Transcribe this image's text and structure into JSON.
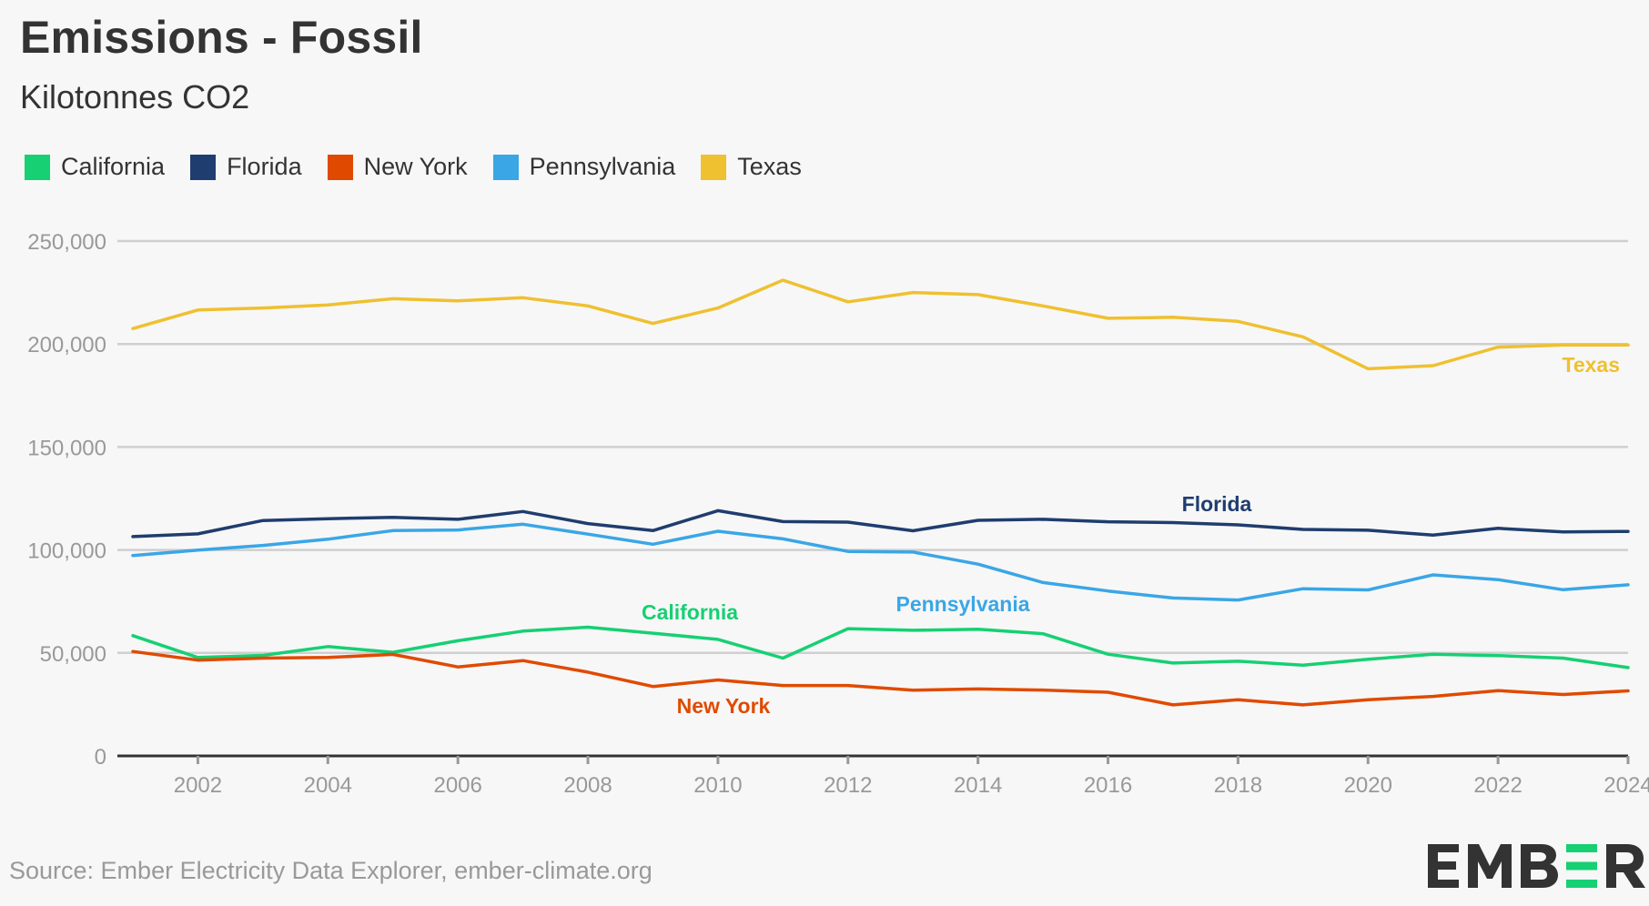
{
  "header": {
    "title": "Emissions - Fossil",
    "subtitle": "Kilotonnes CO2"
  },
  "legend": [
    {
      "label": "California",
      "color": "#16d073"
    },
    {
      "label": "Florida",
      "color": "#1f3d6e"
    },
    {
      "label": "New York",
      "color": "#e04a00"
    },
    {
      "label": "Pennsylvania",
      "color": "#3aa6e6"
    },
    {
      "label": "Texas",
      "color": "#efc030"
    }
  ],
  "footer": {
    "source": "Source: Ember Electricity Data Explorer, ember-climate.org",
    "logo_text": "EMBER",
    "logo_accent_color": "#16d073"
  },
  "chart_data": {
    "type": "line",
    "title": "Emissions - Fossil",
    "subtitle": "Kilotonnes CO2",
    "xlabel": "",
    "ylabel": "Kilotonnes CO2",
    "x": [
      2001,
      2002,
      2003,
      2004,
      2005,
      2006,
      2007,
      2008,
      2009,
      2010,
      2011,
      2012,
      2013,
      2014,
      2015,
      2016,
      2017,
      2018,
      2019,
      2020,
      2021,
      2022,
      2023,
      2024
    ],
    "xlim": [
      2001,
      2024
    ],
    "ylim": [
      0,
      250000
    ],
    "x_ticks": [
      "2002",
      "2004",
      "2006",
      "2008",
      "2010",
      "2012",
      "2014",
      "2016",
      "2018",
      "2020",
      "2022",
      "2024"
    ],
    "y_ticks": [
      "0",
      "50,000",
      "100,000",
      "150,000",
      "200,000",
      "250,000"
    ],
    "grid": true,
    "legend_position": "top-left",
    "series": [
      {
        "name": "California",
        "color": "#16d073",
        "label_text": "California",
        "values": [
          58400,
          47800,
          48800,
          53100,
          50300,
          55900,
          60600,
          62500,
          59600,
          56600,
          47500,
          61800,
          61000,
          61500,
          59300,
          49400,
          45100,
          46000,
          44100,
          46900,
          49400,
          48700,
          47500,
          42900
        ]
      },
      {
        "name": "Florida",
        "color": "#1f3d6e",
        "label_text": "Florida",
        "values": [
          106500,
          107800,
          114300,
          115200,
          115800,
          114900,
          118700,
          112800,
          109400,
          119100,
          113800,
          113500,
          109300,
          114400,
          114900,
          113700,
          113300,
          112200,
          110000,
          109600,
          107200,
          110500,
          108800,
          109000
        ]
      },
      {
        "name": "New York",
        "color": "#e04a00",
        "label_text": "New York",
        "values": [
          50700,
          46500,
          47500,
          47800,
          49300,
          43200,
          46300,
          40700,
          33700,
          36900,
          34200,
          34200,
          31900,
          32500,
          32000,
          30900,
          24800,
          27300,
          24800,
          27300,
          28900,
          31700,
          29800,
          31600
        ]
      },
      {
        "name": "Pennsylvania",
        "color": "#3aa6e6",
        "label_text": "Pennsylvania",
        "values": [
          97300,
          99900,
          102200,
          105200,
          109400,
          109700,
          112500,
          107700,
          102800,
          109100,
          105400,
          99300,
          99000,
          93100,
          84200,
          80100,
          76700,
          75700,
          81200,
          80600,
          87900,
          85600,
          80700,
          83100
        ]
      },
      {
        "name": "Texas",
        "color": "#efc030",
        "label_text": "Texas",
        "values": [
          207500,
          216500,
          217500,
          219000,
          222000,
          221000,
          222500,
          218500,
          210000,
          217500,
          231000,
          220500,
          225000,
          224000,
          218500,
          212500,
          213000,
          211000,
          203500,
          188000,
          189500,
          198500,
          199500,
          199500
        ]
      }
    ]
  }
}
